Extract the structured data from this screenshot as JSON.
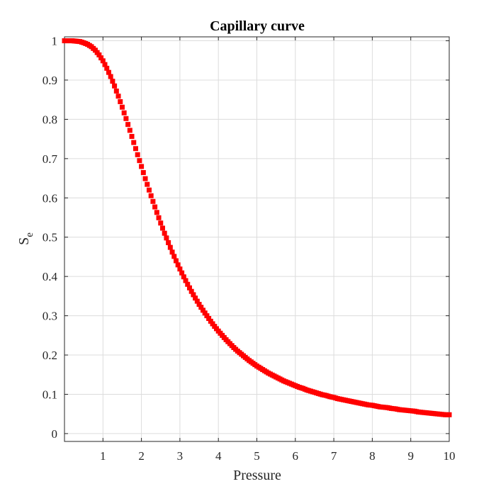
{
  "chart_data": {
    "type": "scatter",
    "title": "Capillary curve",
    "xlabel": "Pressure",
    "ylabel": "S",
    "ylabel_subscript": "e",
    "xlim": [
      0,
      10
    ],
    "ylim": [
      -0.02,
      1.01
    ],
    "xticks": [
      "1",
      "2",
      "3",
      "4",
      "5",
      "6",
      "7",
      "8",
      "9",
      "10"
    ],
    "yticks": [
      "0",
      "0.1",
      "0.2",
      "0.3",
      "0.4",
      "0.5",
      "0.6",
      "0.7",
      "0.8",
      "0.9",
      "1"
    ],
    "grid": true,
    "marker": "square",
    "color": "#ff0000",
    "series": [
      {
        "x": [
          0.0,
          0.1,
          0.2,
          0.3,
          0.4,
          0.5,
          0.6,
          0.7,
          0.8,
          0.9,
          1.0,
          1.1,
          1.2,
          1.3,
          1.4,
          1.5,
          1.6,
          1.7,
          1.8,
          1.9,
          2.0,
          2.1,
          2.2,
          2.3,
          2.4,
          2.5,
          2.6,
          2.7,
          2.8,
          2.9,
          3.0,
          3.1,
          3.2,
          3.3,
          3.4,
          3.5,
          3.6,
          3.7,
          3.8,
          3.9,
          4.0,
          4.1,
          4.2,
          4.3,
          4.4,
          4.5,
          4.6,
          4.7,
          4.8,
          4.9,
          5.0,
          5.1,
          5.2,
          5.3,
          5.4,
          5.5,
          5.6,
          5.7,
          5.8,
          5.9,
          6.0,
          6.1,
          6.2,
          6.3,
          6.4,
          6.5,
          6.6,
          6.7,
          6.8,
          6.9,
          7.0,
          7.1,
          7.2,
          7.3,
          7.4,
          7.5,
          7.6,
          7.7,
          7.8,
          7.9,
          8.0,
          8.1,
          8.2,
          8.3,
          8.4,
          8.5,
          8.6,
          8.7,
          8.8,
          8.9,
          9.0,
          9.1,
          9.2,
          9.3,
          9.4,
          9.5,
          9.6,
          9.7,
          9.8,
          9.9,
          10.0
        ],
        "y": [
          1.0,
          1.0,
          1.0,
          0.999,
          0.998,
          0.995,
          0.991,
          0.985,
          0.976,
          0.964,
          0.949,
          0.93,
          0.909,
          0.885,
          0.859,
          0.831,
          0.802,
          0.772,
          0.741,
          0.71,
          0.68,
          0.649,
          0.62,
          0.591,
          0.563,
          0.536,
          0.51,
          0.486,
          0.462,
          0.44,
          0.419,
          0.399,
          0.38,
          0.362,
          0.345,
          0.329,
          0.314,
          0.3,
          0.286,
          0.273,
          0.261,
          0.25,
          0.239,
          0.229,
          0.219,
          0.21,
          0.202,
          0.194,
          0.186,
          0.179,
          0.172,
          0.166,
          0.16,
          0.154,
          0.149,
          0.144,
          0.139,
          0.134,
          0.13,
          0.126,
          0.122,
          0.118,
          0.115,
          0.111,
          0.108,
          0.105,
          0.102,
          0.099,
          0.097,
          0.094,
          0.092,
          0.089,
          0.087,
          0.085,
          0.083,
          0.081,
          0.079,
          0.077,
          0.075,
          0.073,
          0.072,
          0.07,
          0.068,
          0.067,
          0.066,
          0.064,
          0.063,
          0.061,
          0.06,
          0.059,
          0.058,
          0.057,
          0.055,
          0.054,
          0.053,
          0.052,
          0.051,
          0.05,
          0.049,
          0.048,
          0.048
        ]
      }
    ]
  }
}
